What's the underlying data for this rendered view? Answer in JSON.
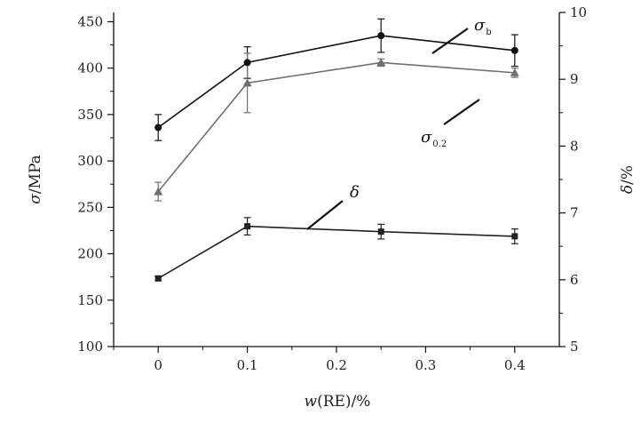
{
  "chart_data": {
    "type": "line",
    "x": [
      0,
      0.1,
      0.25,
      0.4
    ],
    "xlabel": {
      "prefix": "w",
      "rest": "(RE)/%"
    },
    "ylabel_left": {
      "prefix": "σ",
      "rest": "/MPa"
    },
    "ylabel_right": {
      "prefix": "δ",
      "rest": "/%"
    },
    "xlim": [
      -0.05,
      0.45
    ],
    "ylim_left": [
      100,
      460
    ],
    "ylim_right": [
      5,
      10
    ],
    "x_ticks": [
      "0",
      "0.1",
      "0.2",
      "0.3",
      "0.4"
    ],
    "y_ticks_left": [
      "100",
      "150",
      "200",
      "250",
      "300",
      "350",
      "400",
      "450"
    ],
    "y_ticks_right": [
      "5",
      "6",
      "7",
      "8",
      "9",
      "10"
    ],
    "grid": false,
    "legend": "none",
    "series": [
      {
        "name": "σb",
        "label_symbol": "σ",
        "label_sub": "b",
        "axis": "left",
        "marker": "circle",
        "color": "#111111",
        "values": [
          336,
          406,
          435,
          419
        ],
        "errors": [
          14,
          17,
          18,
          17
        ]
      },
      {
        "name": "σ0.2",
        "label_symbol": "σ",
        "label_sub": "0.2",
        "axis": "left",
        "marker": "triangle",
        "color": "#707070",
        "values": [
          267,
          384,
          406,
          395
        ],
        "errors": [
          10,
          32,
          4,
          5
        ]
      },
      {
        "name": "δ",
        "label_symbol": "δ",
        "label_sub": "",
        "axis": "right",
        "marker": "square",
        "color": "#222222",
        "values": [
          6.02,
          6.8,
          6.72,
          6.65
        ],
        "errors": [
          0.03,
          0.13,
          0.11,
          0.11
        ]
      }
    ]
  }
}
